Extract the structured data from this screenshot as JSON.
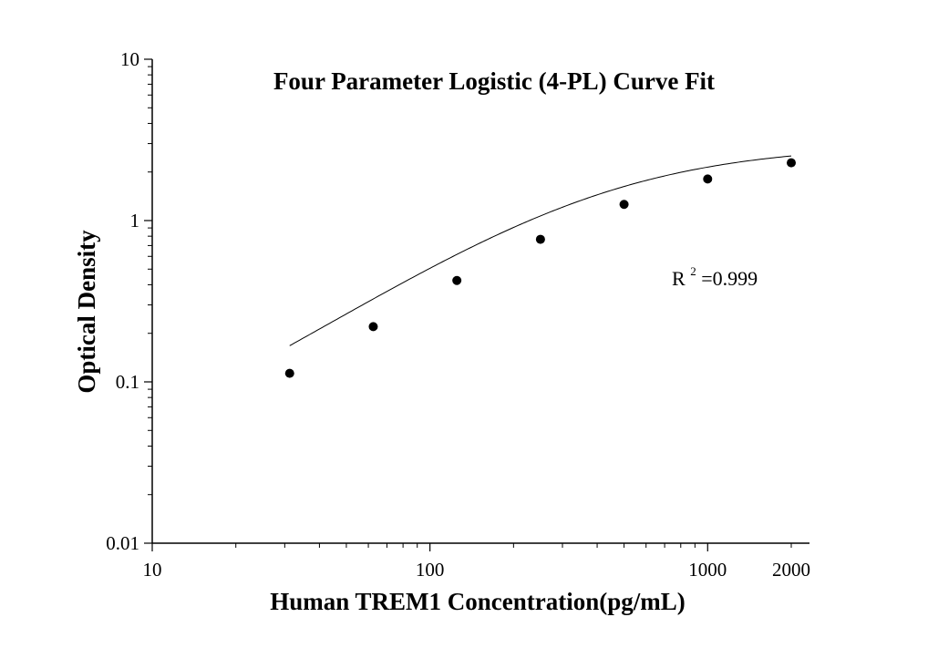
{
  "chart_data": {
    "type": "scatter",
    "title": "Four Parameter Logistic (4-PL) Curve Fit",
    "xlabel": "Human TREM1 Concentration(pg/mL)",
    "ylabel": "Optical Density",
    "xscale": "log",
    "yscale": "log",
    "xlim": [
      10,
      2000
    ],
    "ylim": [
      0.01,
      10
    ],
    "x_ticks": [
      {
        "value": 10,
        "label": "10"
      },
      {
        "value": 100,
        "label": "100"
      },
      {
        "value": 1000,
        "label": "1000"
      },
      {
        "value": 2000,
        "label": "2000"
      }
    ],
    "y_ticks": [
      {
        "value": 0.01,
        "label": "0.01"
      },
      {
        "value": 0.1,
        "label": "0.1"
      },
      {
        "value": 1,
        "label": "1"
      },
      {
        "value": 10,
        "label": "10"
      }
    ],
    "grid": false,
    "series": [
      {
        "x": [
          31.25,
          62.5,
          125,
          250,
          500,
          1000,
          2000
        ],
        "y": [
          0.113,
          0.22,
          0.425,
          0.765,
          1.26,
          1.81,
          2.28
        ]
      }
    ],
    "fit": {
      "model": "4PL",
      "A": 0.016,
      "B": 1.12,
      "C": 420,
      "D": 2.95
    },
    "annotation": {
      "base": "R",
      "sup": "2",
      "rest": "=0.999"
    },
    "colors": {
      "points": "#000000",
      "line": "#000000",
      "axis": "#000000"
    }
  }
}
